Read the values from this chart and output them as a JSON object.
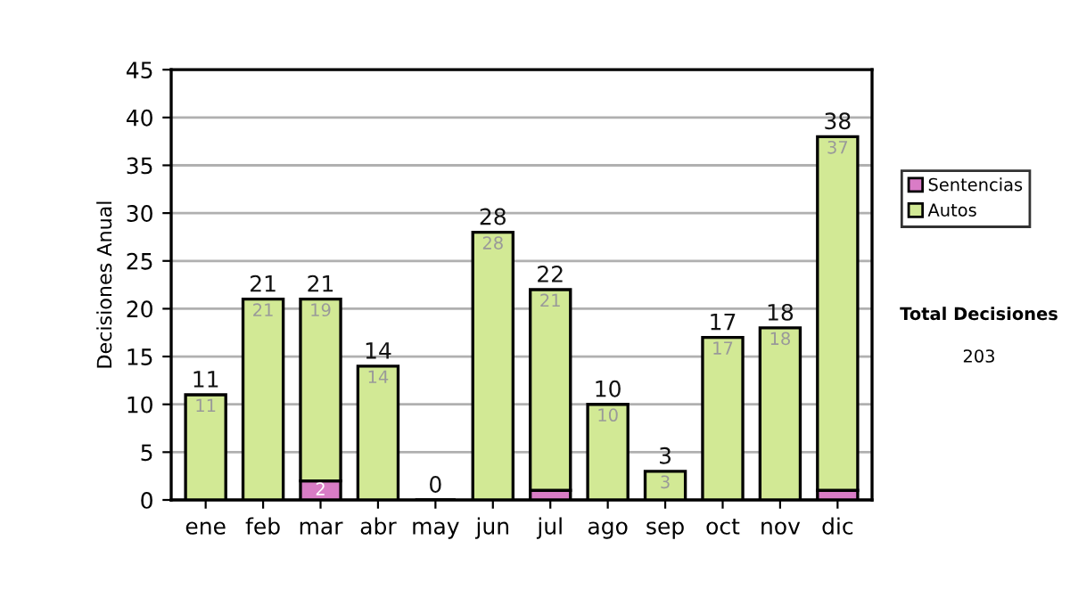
{
  "chart_data": {
    "type": "bar",
    "stacked": true,
    "ylabel": "Decisiones Anual",
    "categories": [
      "ene",
      "feb",
      "mar",
      "abr",
      "may",
      "jun",
      "jul",
      "ago",
      "sep",
      "oct",
      "nov",
      "dic"
    ],
    "series": [
      {
        "name": "Sentencias",
        "color": "#d97cc6",
        "values": [
          0,
          0,
          2,
          0,
          0,
          0,
          1,
          0,
          0,
          0,
          0,
          1
        ],
        "value_labels": [
          null,
          null,
          "2",
          null,
          null,
          null,
          null,
          null,
          null,
          null,
          null,
          null
        ]
      },
      {
        "name": "Autos",
        "color": "#d2e995",
        "values": [
          11,
          21,
          19,
          14,
          0,
          28,
          21,
          10,
          3,
          17,
          18,
          37
        ],
        "value_labels": [
          "11",
          "21",
          "19",
          "14",
          null,
          "28",
          "21",
          "10",
          "3",
          "17",
          "18",
          "37"
        ]
      }
    ],
    "totals": [
      "11",
      "21",
      "21",
      "14",
      "0",
      "28",
      "22",
      "10",
      "3",
      "17",
      "18",
      "38"
    ],
    "ylim": [
      0,
      45
    ],
    "yticks": [
      0,
      5,
      10,
      15,
      20,
      25,
      30,
      35,
      40,
      45
    ],
    "grid": "y",
    "legend": "right",
    "annotations": [
      "Total Decisiones",
      "203"
    ]
  }
}
